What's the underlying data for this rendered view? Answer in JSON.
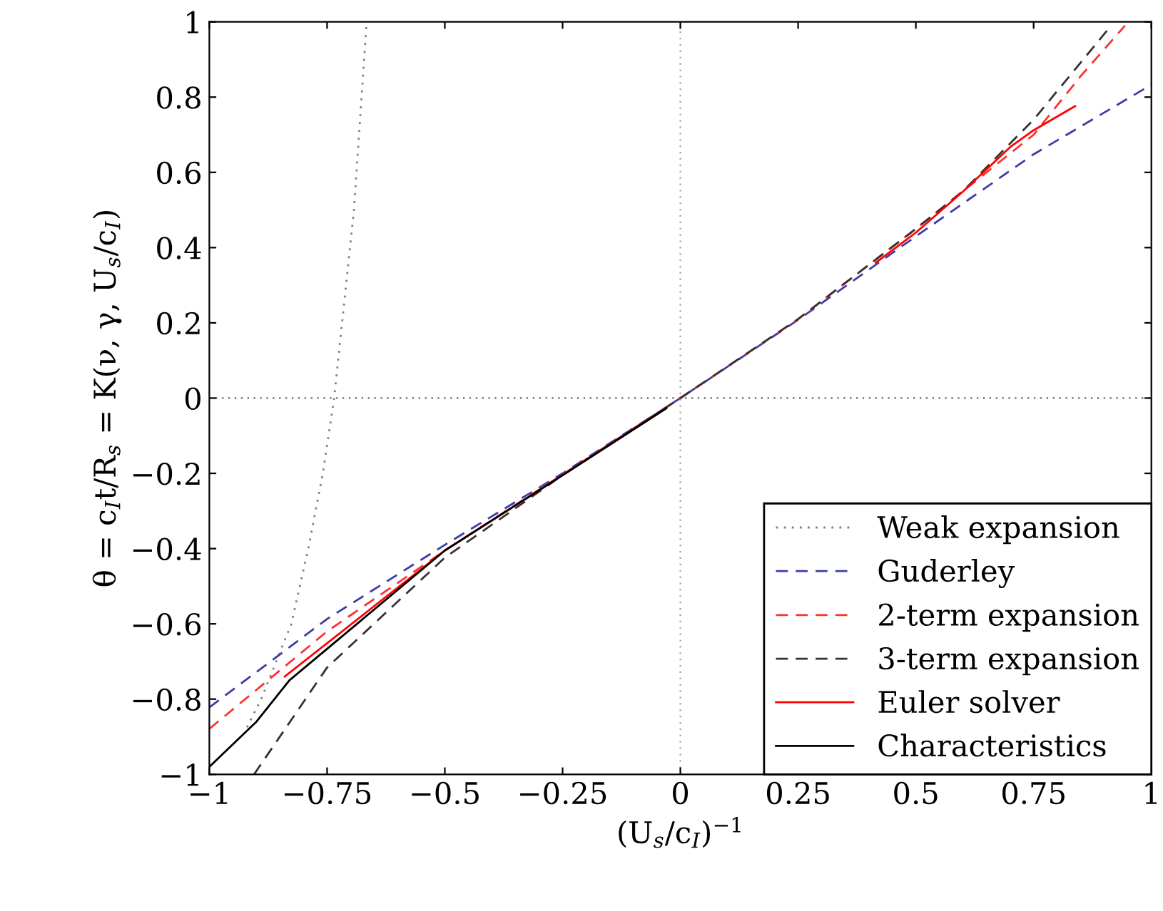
{
  "chart_data": {
    "type": "line",
    "xlabel": "(U$_{s}$/c$_{I}$)$^{−1}$",
    "ylabel": "θ = c$_{I}$t/R$_{s}$ = K(ν, γ, U$_{s}$/c$_{I}$)",
    "xlim": [
      -1,
      1
    ],
    "ylim": [
      -1,
      1
    ],
    "xticks": [
      -1,
      -0.75,
      -0.5,
      -0.25,
      0,
      0.25,
      0.5,
      0.75,
      1
    ],
    "yticks": [
      -1,
      -0.8,
      -0.6,
      -0.4,
      -0.2,
      0,
      0.2,
      0.4,
      0.6,
      0.8,
      1
    ],
    "grid": false,
    "legend": "bottom right",
    "marker": "none",
    "ref_lines": [
      {
        "axis": "x",
        "value": 0,
        "color": "#a0a0a0",
        "line_style": "dotted"
      },
      {
        "axis": "y",
        "value": 0,
        "color": "#606060",
        "line_style": "dotted"
      }
    ],
    "series": [
      {
        "name": "Weak expansion",
        "color": "#808080",
        "line_style": "dotted",
        "x": [
          -0.92,
          -0.89,
          -0.826,
          -0.79,
          -0.759,
          -0.735,
          -0.693,
          -0.666
        ],
        "values": [
          -0.875,
          -0.8,
          -0.6,
          -0.4,
          -0.2,
          0,
          0.5,
          1
        ]
      },
      {
        "name": "Guderley",
        "color": "#3c3caa",
        "line_style": "dashed",
        "x": [
          -1,
          -0.75,
          -0.5,
          -0.25,
          0,
          0.25,
          0.5,
          0.75,
          1
        ],
        "values": [
          -0.822,
          -0.587,
          -0.39,
          -0.2,
          0,
          0.208,
          0.43,
          0.648,
          0.833
        ]
      },
      {
        "name": "2-term expansion",
        "color": "#ff3030",
        "line_style": "dashed",
        "x": [
          -1,
          -0.75,
          -0.5,
          -0.25,
          0,
          0.25,
          0.5,
          0.75,
          0.85,
          0.944
        ],
        "values": [
          -0.879,
          -0.62,
          -0.405,
          -0.203,
          0,
          0.21,
          0.45,
          0.7,
          0.856,
          0.99
        ]
      },
      {
        "name": "3-term expansion",
        "color": "#333333",
        "line_style": "dashed",
        "x": [
          -0.905,
          -0.75,
          -0.5,
          -0.25,
          0,
          0.25,
          0.5,
          0.6,
          0.75,
          0.908
        ],
        "values": [
          -1,
          -0.716,
          -0.424,
          -0.205,
          0,
          0.21,
          0.45,
          0.55,
          0.74,
          0.98
        ]
      },
      {
        "name": "Euler solver",
        "color": "#ff0000",
        "line_style": "solid",
        "x": [
          -0.84,
          -0.5,
          -0.25,
          -0.03,
          null,
          0.415,
          0.5,
          0.6,
          0.7,
          0.75,
          0.838
        ],
        "values": [
          -0.74,
          -0.405,
          -0.205,
          -0.027,
          null,
          0.36,
          0.44,
          0.549,
          0.667,
          0.712,
          0.776
        ]
      },
      {
        "name": "Characteristics",
        "color": "#000000",
        "line_style": "solid",
        "x": [
          -1,
          -0.9,
          -0.83,
          -0.5,
          -0.25,
          -0.03
        ],
        "values": [
          -0.98,
          -0.86,
          -0.75,
          -0.405,
          -0.205,
          -0.027
        ]
      }
    ]
  }
}
